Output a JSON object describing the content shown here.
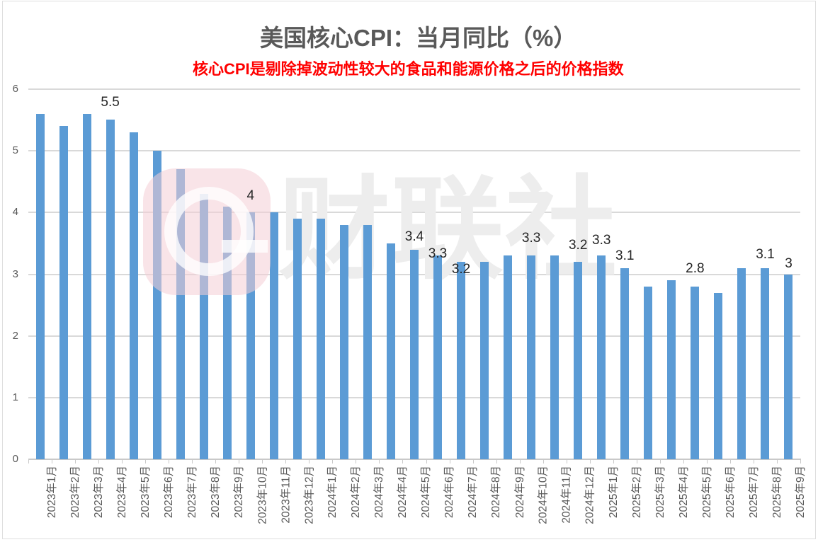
{
  "title": {
    "text": "美国核心CPI：当月同比（%）",
    "color": "#595959"
  },
  "subtitle": {
    "text": "核心CPI是剔除掉波动性较大的食品和能源价格之后的价格指数",
    "color": "#FF0000"
  },
  "watermark": {
    "text": "财联社",
    "logo_pink": "#F7D4DC"
  },
  "colors": {
    "bar": "#5B9BD5",
    "gridline": "#D9D9D9",
    "axis_line": "#C9C9C9",
    "axis_labels": "#595959",
    "data_labels": "#262626"
  },
  "chart_data": {
    "type": "bar",
    "title": "美国核心CPI：当月同比（%）",
    "subtitle": "核心CPI是剔除掉波动性较大的食品和能源价格之后的价格指数",
    "xlabel": "",
    "ylabel": "",
    "ylim": [
      0,
      6
    ],
    "y_ticks": [
      "6",
      "5",
      "4",
      "3",
      "2",
      "1",
      "0"
    ],
    "grid": true,
    "legend": "none",
    "categories": [
      "2023年1月",
      "2023年2月",
      "2023年3月",
      "2023年4月",
      "2023年5月",
      "2023年6月",
      "2023年7月",
      "2023年8月",
      "2023年9月",
      "2023年10月",
      "2023年11月",
      "2023年12月",
      "2024年1月",
      "2024年2月",
      "2024年3月",
      "2024年4月",
      "2024年5月",
      "2024年6月",
      "2024年7月",
      "2024年8月",
      "2024年9月",
      "2024年10月",
      "2024年11月",
      "2024年12月",
      "2025年1月",
      "2025年2月",
      "2025年3月",
      "2025年4月",
      "2025年5月",
      "2025年6月",
      "2025年7月",
      "2025年8月",
      "2025年9月"
    ],
    "values": [
      5.6,
      5.4,
      5.6,
      5.5,
      5.3,
      5.0,
      4.7,
      4.3,
      4.1,
      4.0,
      4.0,
      3.9,
      3.9,
      3.8,
      3.8,
      3.5,
      3.4,
      3.3,
      3.2,
      3.2,
      3.3,
      3.3,
      3.3,
      3.2,
      3.3,
      3.1,
      2.8,
      2.9,
      2.8,
      2.7,
      3.1,
      3.1,
      3.0
    ],
    "data_labels": [
      {
        "category": "2023年4月",
        "text": "5.5"
      },
      {
        "category": "2023年10月",
        "text": "4"
      },
      {
        "category": "2024年5月",
        "text": "3.4"
      },
      {
        "category": "2024年6月",
        "text": "3.3"
      },
      {
        "category": "2024年7月",
        "text": "3.2"
      },
      {
        "category": "2024年10月",
        "text": "3.3"
      },
      {
        "category": "2024年12月",
        "text": "3.2"
      },
      {
        "category": "2025年1月",
        "text": "3.3"
      },
      {
        "category": "2025年2月",
        "text": "3.1"
      },
      {
        "category": "2025年5月",
        "text": "2.8"
      },
      {
        "category": "2025年8月",
        "text": "3.1"
      },
      {
        "category": "2025年9月",
        "text": "3"
      }
    ]
  }
}
